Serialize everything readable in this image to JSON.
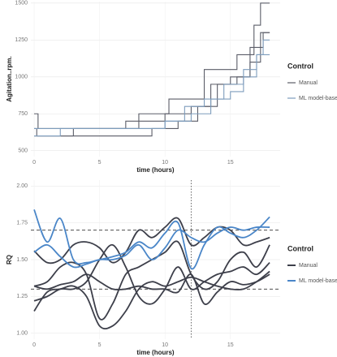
{
  "chart_data": [
    {
      "type": "step",
      "ylabel": "Agitation..rpm.",
      "xlabel": "time (hours)",
      "legend_title": "Control",
      "xlim": [
        -0.25,
        18.8
      ],
      "ylim": [
        460,
        1510
      ],
      "xticks": [
        0,
        5,
        10,
        15
      ],
      "yticks": [
        500,
        750,
        1000,
        1250,
        1500
      ],
      "grid": true,
      "series": [
        {
          "name": "Manual",
          "color": "#5b5d68",
          "lines": [
            {
              "x": [
                0,
                0.3,
                4,
                8,
                10.3,
                13,
                14.5,
                15.5,
                16.8,
                17.3,
                18
              ],
              "values": [
                750,
                650,
                650,
                750,
                850,
                1050,
                1050,
                1150,
                1350,
                1500,
                1500
              ]
            },
            {
              "x": [
                0,
                3,
                7,
                10,
                12,
                13.5,
                15,
                16.5,
                17.3,
                18
              ],
              "values": [
                600,
                650,
                700,
                750,
                800,
                950,
                1000,
                1100,
                1300,
                1300
              ]
            },
            {
              "x": [
                0,
                0.2,
                5,
                9,
                11,
                12.5,
                14,
                15.5,
                16.5,
                17.5,
                18
              ],
              "values": [
                650,
                600,
                600,
                650,
                700,
                800,
                950,
                1000,
                1200,
                1300,
                1300
              ]
            }
          ]
        },
        {
          "name": "ML model-based",
          "color": "#7d9cbc",
          "lines": [
            {
              "x": [
                0,
                2,
                6,
                10,
                11.5,
                13,
                14.5,
                16,
                17,
                17.5,
                18
              ],
              "values": [
                650,
                650,
                650,
                700,
                800,
                850,
                950,
                1050,
                1150,
                1250,
                1250
              ]
            },
            {
              "x": [
                0,
                2,
                6,
                10,
                12,
                13.5,
                15,
                16,
                17,
                18
              ],
              "values": [
                600,
                650,
                650,
                700,
                750,
                850,
                900,
                1000,
                1150,
                1150
              ]
            }
          ]
        }
      ]
    },
    {
      "type": "line",
      "ylabel": "RQ",
      "xlabel": "time (hours)",
      "legend_title": "Control",
      "xlim": [
        -0.25,
        18.8
      ],
      "ylim": [
        0.96,
        2.04
      ],
      "xticks": [
        0,
        5,
        10,
        15
      ],
      "yticks": [
        {
          "value": 1,
          "label": "1.00"
        },
        1.25,
        {
          "value": 1.5,
          "label": "1.50"
        },
        1.75,
        {
          "value": 2,
          "label": "2.00"
        }
      ],
      "grid": true,
      "hlines": [
        1.7,
        1.3
      ],
      "vline": 12,
      "x": [
        0,
        1,
        2,
        3,
        4,
        5,
        6,
        7,
        8,
        9,
        10,
        11,
        12,
        13,
        14,
        15,
        16,
        17,
        18
      ],
      "series": [
        {
          "name": "Manual",
          "color": "#3d3f4a",
          "lines": [
            {
              "values": [
                1.56,
                1.48,
                1.5,
                1.6,
                1.62,
                1.58,
                1.48,
                1.55,
                1.7,
                1.65,
                1.72,
                1.78,
                1.6,
                1.65,
                1.72,
                1.7,
                1.6,
                1.62,
                1.65
              ]
            },
            {
              "values": [
                1.32,
                1.35,
                1.45,
                1.48,
                1.4,
                1.1,
                1.2,
                1.4,
                1.45,
                1.5,
                1.55,
                1.62,
                1.4,
                1.3,
                1.35,
                1.5,
                1.55,
                1.45,
                1.6
              ]
            },
            {
              "values": [
                1.22,
                1.25,
                1.3,
                1.3,
                1.35,
                1.5,
                1.6,
                1.45,
                1.25,
                1.2,
                1.3,
                1.45,
                1.3,
                1.35,
                1.4,
                1.42,
                1.45,
                1.4,
                1.48
              ]
            },
            {
              "values": [
                1.15,
                1.28,
                1.3,
                1.32,
                1.25,
                1.05,
                1.05,
                1.15,
                1.3,
                1.35,
                1.32,
                1.35,
                1.38,
                1.35,
                1.32,
                1.3,
                1.3,
                1.35,
                1.42
              ]
            },
            {
              "values": [
                1.32,
                1.3,
                1.33,
                1.35,
                1.4,
                1.35,
                1.3,
                1.3,
                1.32,
                1.3,
                1.3,
                1.28,
                1.4,
                1.2,
                1.28,
                1.35,
                1.33,
                1.35,
                1.4
              ]
            }
          ]
        },
        {
          "name": "ML model-based",
          "color": "#4a86c8",
          "lines": [
            {
              "values": [
                1.84,
                1.62,
                1.78,
                1.5,
                1.48,
                1.5,
                1.52,
                1.55,
                1.62,
                1.58,
                1.68,
                1.75,
                1.44,
                1.6,
                1.72,
                1.68,
                1.65,
                1.7,
                1.79
              ]
            },
            {
              "values": [
                1.55,
                1.6,
                1.52,
                1.45,
                1.47,
                1.5,
                1.5,
                1.53,
                1.6,
                1.5,
                1.58,
                1.7,
                1.65,
                1.62,
                1.68,
                1.72,
                1.7,
                1.72,
                1.72
              ]
            }
          ]
        }
      ]
    }
  ]
}
